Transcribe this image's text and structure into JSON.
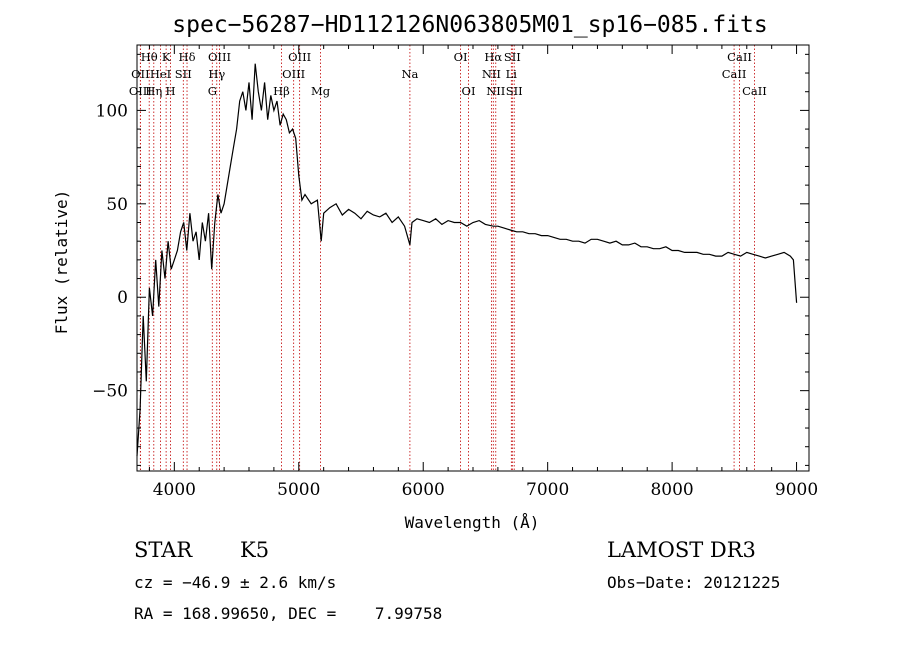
{
  "chart_data": {
    "type": "line",
    "title": "spec−56287−HD112126N063805M01_sp16−085.fits",
    "xlabel": "Wavelength (Å)",
    "ylabel": "Flux (relative)",
    "xlim": [
      3700,
      9100
    ],
    "ylim": [
      -93,
      135
    ],
    "xticks": [
      4000,
      5000,
      6000,
      7000,
      8000,
      9000
    ],
    "xtick_labels": [
      "4000",
      "5000",
      "6000",
      "7000",
      "8000",
      "9000"
    ],
    "yticks": [
      -50,
      0,
      50,
      100
    ],
    "ytick_labels": [
      "−50",
      "0",
      "50",
      "100"
    ],
    "series": [
      {
        "name": "spectrum",
        "color": "#000000",
        "x": [
          3700,
          3725,
          3750,
          3775,
          3800,
          3825,
          3850,
          3875,
          3900,
          3925,
          3950,
          3975,
          4000,
          4025,
          4050,
          4075,
          4100,
          4125,
          4150,
          4175,
          4200,
          4225,
          4250,
          4275,
          4300,
          4325,
          4350,
          4375,
          4400,
          4425,
          4450,
          4475,
          4500,
          4525,
          4550,
          4575,
          4600,
          4625,
          4650,
          4675,
          4700,
          4725,
          4750,
          4775,
          4800,
          4825,
          4850,
          4875,
          4900,
          4925,
          4950,
          4975,
          5000,
          5025,
          5050,
          5100,
          5150,
          5180,
          5200,
          5250,
          5300,
          5350,
          5400,
          5450,
          5500,
          5550,
          5600,
          5650,
          5700,
          5750,
          5800,
          5850,
          5893,
          5910,
          5950,
          6000,
          6050,
          6100,
          6150,
          6200,
          6250,
          6300,
          6350,
          6400,
          6450,
          6500,
          6563,
          6600,
          6650,
          6700,
          6750,
          6800,
          6850,
          6900,
          6950,
          7000,
          7050,
          7100,
          7150,
          7200,
          7250,
          7300,
          7350,
          7400,
          7450,
          7500,
          7550,
          7600,
          7650,
          7700,
          7750,
          7800,
          7850,
          7900,
          7950,
          8000,
          8050,
          8100,
          8150,
          8200,
          8250,
          8300,
          8350,
          8400,
          8450,
          8500,
          8550,
          8600,
          8650,
          8700,
          8750,
          8800,
          8850,
          8900,
          8950,
          8975,
          9000
        ],
        "y": [
          -85,
          -60,
          -10,
          -45,
          5,
          -10,
          20,
          -5,
          25,
          10,
          30,
          15,
          20,
          25,
          35,
          40,
          25,
          45,
          30,
          35,
          20,
          40,
          30,
          45,
          15,
          40,
          55,
          45,
          50,
          60,
          70,
          80,
          90,
          105,
          110,
          100,
          115,
          95,
          125,
          110,
          100,
          115,
          95,
          108,
          100,
          105,
          92,
          98,
          95,
          88,
          90,
          85,
          65,
          52,
          55,
          50,
          52,
          30,
          45,
          48,
          50,
          44,
          47,
          45,
          42,
          46,
          44,
          43,
          45,
          40,
          43,
          38,
          28,
          40,
          42,
          41,
          40,
          42,
          39,
          41,
          40,
          40,
          38,
          40,
          41,
          39,
          38,
          38,
          37,
          36,
          35,
          35,
          34,
          34,
          33,
          33,
          32,
          31,
          31,
          30,
          30,
          29,
          31,
          31,
          30,
          29,
          30,
          28,
          28,
          29,
          27,
          27,
          26,
          26,
          27,
          25,
          25,
          24,
          24,
          24,
          23,
          23,
          22,
          22,
          24,
          23,
          22,
          24,
          23,
          22,
          21,
          22,
          23,
          24,
          22,
          20,
          -3
        ]
      }
    ],
    "lines": [
      {
        "label": "Hθ",
        "x": 3798,
        "row": 1
      },
      {
        "label": "OII",
        "x": 3727,
        "row": 2
      },
      {
        "label": "OIII",
        "x": 3727,
        "row": 3
      },
      {
        "label": "Hη",
        "x": 3835,
        "row": 3
      },
      {
        "label": "HeI",
        "x": 3889,
        "row": 2
      },
      {
        "label": "K",
        "x": 3934,
        "row": 1
      },
      {
        "label": "H",
        "x": 3969,
        "row": 3
      },
      {
        "label": "SII",
        "x": 4072,
        "row": 2
      },
      {
        "label": "Hδ",
        "x": 4102,
        "row": 1
      },
      {
        "label": "G",
        "x": 4305,
        "row": 3
      },
      {
        "label": "Hγ",
        "x": 4341,
        "row": 2
      },
      {
        "label": "OIII",
        "x": 4363,
        "row": 1
      },
      {
        "label": "Hβ",
        "x": 4861,
        "row": 3
      },
      {
        "label": "OIII",
        "x": 4959,
        "row": 2
      },
      {
        "label": "OIII",
        "x": 5007,
        "row": 1
      },
      {
        "label": "Mg",
        "x": 5175,
        "row": 3
      },
      {
        "label": "Na",
        "x": 5893,
        "row": 2
      },
      {
        "label": "OI",
        "x": 6300,
        "row": 1
      },
      {
        "label": "OI",
        "x": 6364,
        "row": 3
      },
      {
        "label": "NII",
        "x": 6548,
        "row": 2
      },
      {
        "label": "Hα",
        "x": 6563,
        "row": 1
      },
      {
        "label": "NII",
        "x": 6583,
        "row": 3
      },
      {
        "label": "Li",
        "x": 6708,
        "row": 2
      },
      {
        "label": "SII",
        "x": 6716,
        "row": 1
      },
      {
        "label": "SII",
        "x": 6731,
        "row": 3
      },
      {
        "label": "CaII",
        "x": 8498,
        "row": 2
      },
      {
        "label": "CaII",
        "x": 8542,
        "row": 1
      },
      {
        "label": "CaII",
        "x": 8662,
        "row": 3
      }
    ]
  },
  "info": {
    "object_class": "STAR",
    "subclass": "K5",
    "survey": "LAMOST DR3",
    "cz": "cz = −46.9 ± 2.6 km/s",
    "obs_date": "Obs−Date: 20121225",
    "coords": "RA = 168.99650, DEC =    7.99758"
  }
}
